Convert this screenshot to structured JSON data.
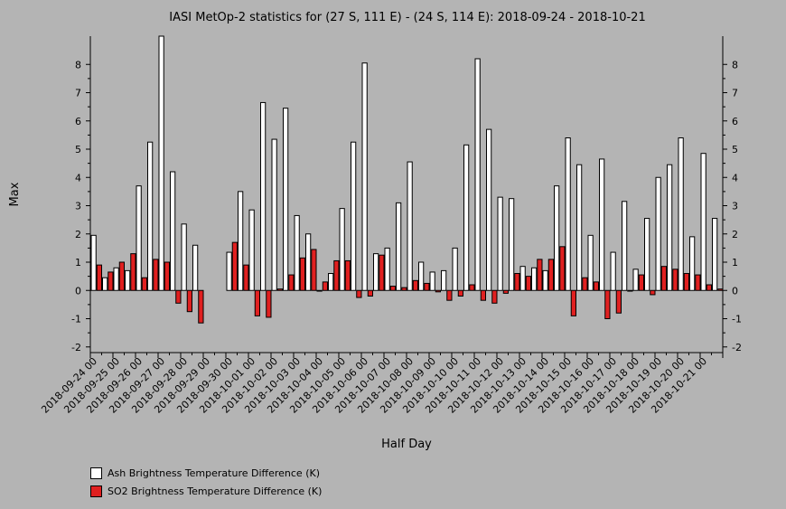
{
  "chart_data": {
    "type": "bar",
    "title": "IASI MetOp-2 statistics for (27 S, 111 E) - (24 S, 114 E): 2018-09-24 - 2018-10-21",
    "xlabel": "Half Day",
    "ylabel": "Max",
    "ylim": [
      -2.2,
      9.0
    ],
    "yticks": [
      -2,
      -1,
      0,
      1,
      2,
      3,
      4,
      5,
      6,
      7,
      8
    ],
    "x_tick_labels": [
      "2018-09-24 00",
      "2018-09-25 00",
      "2018-09-26 00",
      "2018-09-27 00",
      "2018-09-28 00",
      "2018-09-29 00",
      "2018-09-30 00",
      "2018-10-01 00",
      "2018-10-02 00",
      "2018-10-03 00",
      "2018-10-04 00",
      "2018-10-05 00",
      "2018-10-06 00",
      "2018-10-07 00",
      "2018-10-08 00",
      "2018-10-09 00",
      "2018-10-10 00",
      "2018-10-11 00",
      "2018-10-12 00",
      "2018-10-13 00",
      "2018-10-14 00",
      "2018-10-15 00",
      "2018-10-16 00",
      "2018-10-17 00",
      "2018-10-18 00",
      "2018-10-19 00",
      "2018-10-20 00",
      "2018-10-21 00"
    ],
    "x_tick_every": 2,
    "legend_position": "bottom-left",
    "series": [
      {
        "name": "Ash Brightness Temperature Difference (K)",
        "color": "#ffffff",
        "values": [
          1.95,
          0.45,
          0.8,
          0.7,
          3.7,
          5.25,
          9.0,
          4.2,
          2.35,
          1.6,
          null,
          null,
          1.35,
          3.5,
          2.85,
          6.65,
          5.35,
          6.45,
          2.65,
          2.0,
          0.0,
          0.6,
          2.9,
          5.25,
          8.05,
          1.3,
          1.5,
          3.1,
          4.55,
          1.0,
          0.65,
          0.7,
          1.5,
          5.15,
          8.2,
          5.7,
          3.3,
          3.25,
          0.85,
          0.8,
          0.7,
          3.7,
          5.4,
          4.45,
          1.95,
          4.65,
          1.35,
          3.15,
          0.75,
          2.55,
          4.0,
          4.45,
          5.4,
          1.9,
          4.85,
          2.55
        ]
      },
      {
        "name": "SO2 Brightness Temperature Difference (K)",
        "color": "#e02020",
        "values": [
          0.9,
          0.65,
          1.0,
          1.3,
          0.45,
          1.1,
          1.0,
          -0.45,
          -0.75,
          -1.15,
          null,
          null,
          1.7,
          0.9,
          -0.9,
          -0.95,
          0.05,
          0.55,
          1.15,
          1.45,
          0.3,
          1.05,
          1.05,
          -0.25,
          -0.2,
          1.25,
          0.15,
          0.1,
          0.35,
          0.25,
          -0.05,
          -0.35,
          -0.2,
          0.2,
          -0.35,
          -0.45,
          -0.1,
          0.6,
          0.5,
          1.1,
          1.1,
          1.55,
          -0.9,
          0.45,
          0.3,
          -1.0,
          -0.8,
          0.0,
          0.55,
          -0.15,
          0.85,
          0.75,
          0.6,
          0.55,
          0.2,
          0.05
        ]
      }
    ]
  }
}
